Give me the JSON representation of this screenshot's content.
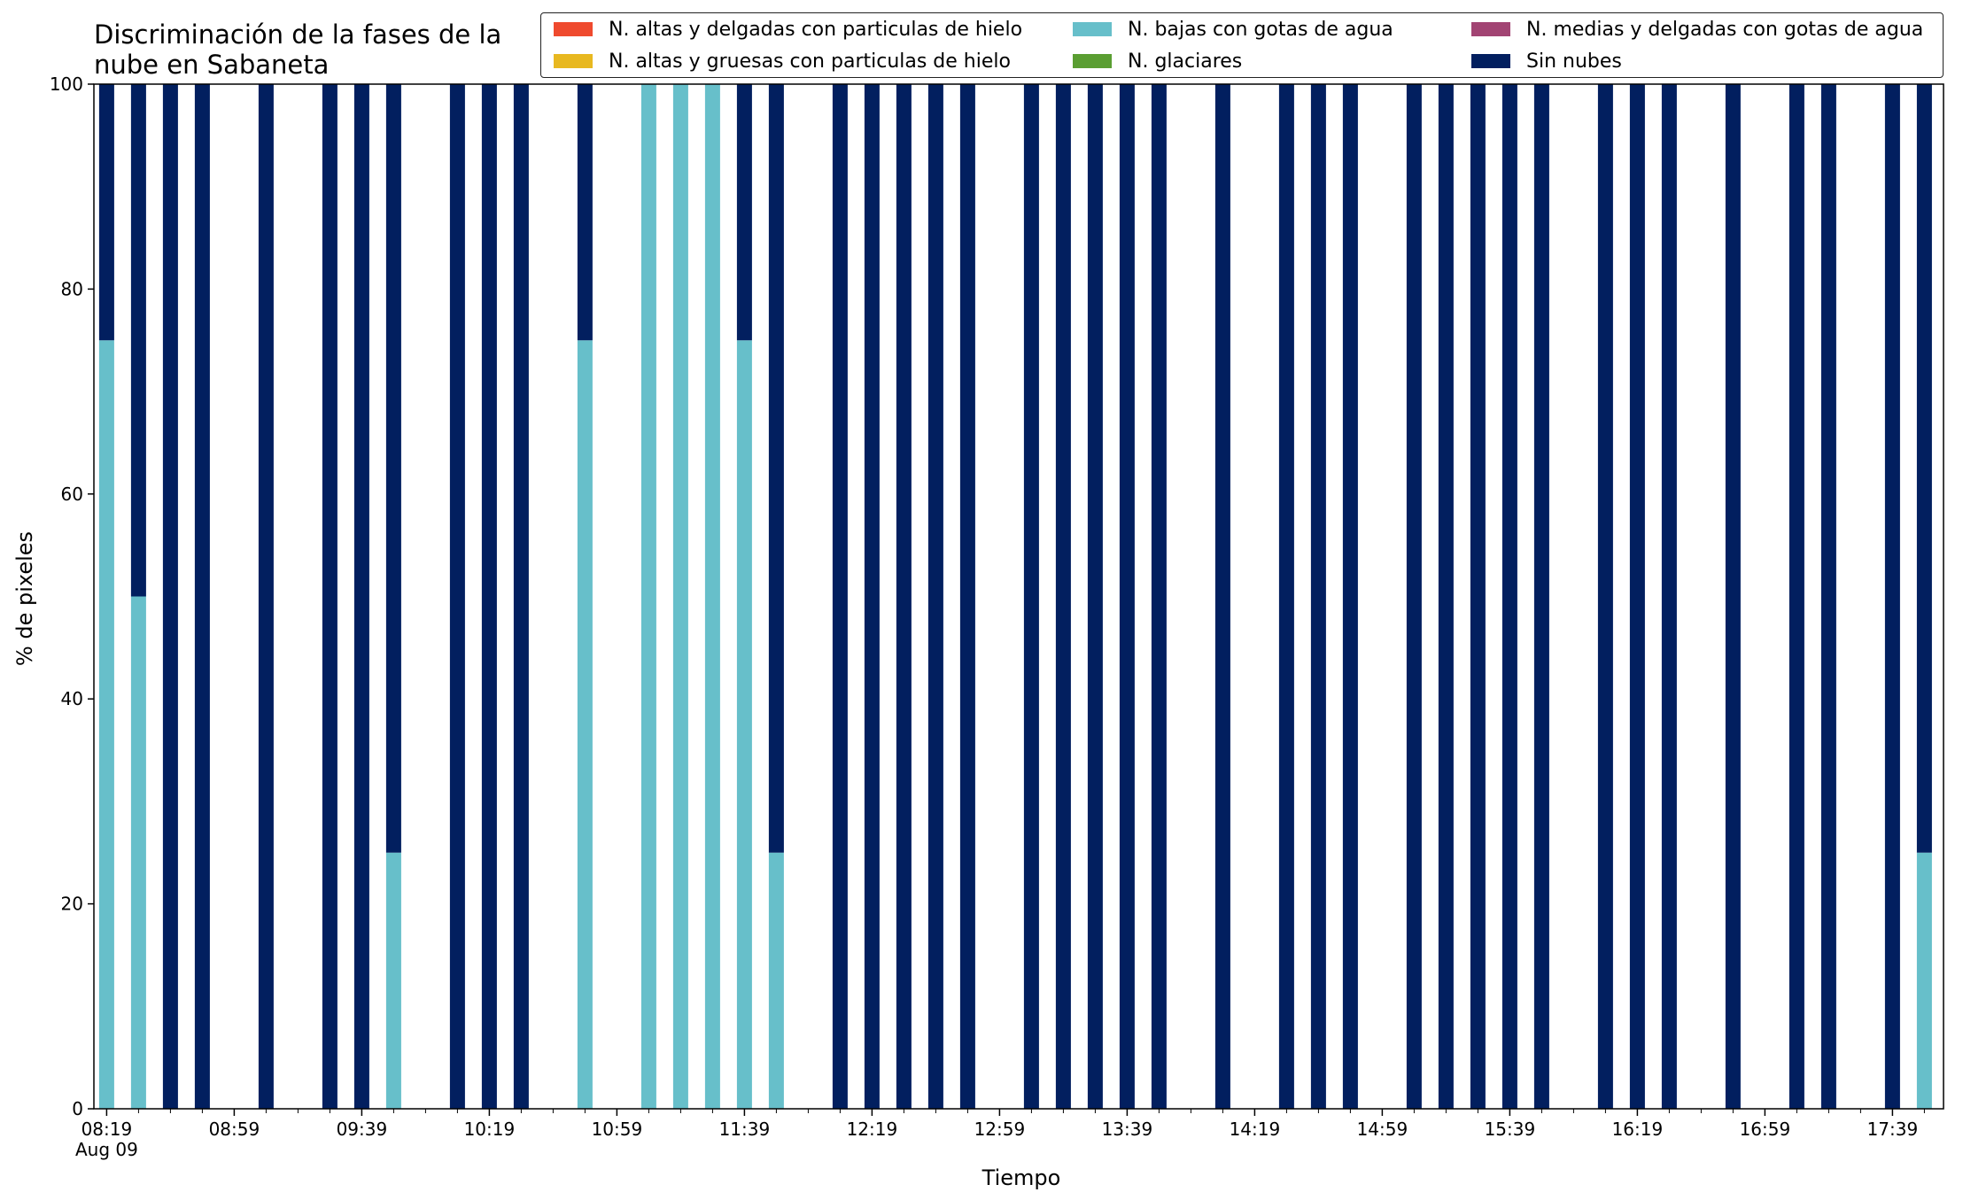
{
  "chart_data": {
    "type": "bar",
    "stacked": true,
    "title_lines": [
      "Discriminación de la fases de la",
      "nube en Sabaneta"
    ],
    "xlabel": "Tiempo",
    "ylabel": "% de pixeles",
    "ylim": [
      0,
      100
    ],
    "yticks": [
      "0",
      "20",
      "40",
      "60",
      "80",
      "100"
    ],
    "xtick_labels": [
      "08:19",
      "08:59",
      "09:39",
      "10:19",
      "10:59",
      "11:39",
      "12:19",
      "12:59",
      "13:39",
      "14:19",
      "14:59",
      "15:39",
      "16:19",
      "16:59",
      "17:39"
    ],
    "xtick_sublabel": "Aug 09",
    "grid": false,
    "legend_position": "top",
    "series": [
      {
        "name": "N. altas y delgadas con particulas de hielo",
        "color": "#ef4a2e"
      },
      {
        "name": "N. altas y gruesas con particulas de hielo",
        "color": "#e8b820"
      },
      {
        "name": "N. bajas con gotas de agua",
        "color": "#67bfca"
      },
      {
        "name": "N. glaciares",
        "color": "#5a9e32"
      },
      {
        "name": "N. medias y delgadas con gotas de agua",
        "color": "#a24473"
      },
      {
        "name": "Sin nubes",
        "color": "#021f5f"
      }
    ],
    "bars": [
      {
        "time": "08:19",
        "N. bajas con gotas de agua": 75,
        "Sin nubes": 25
      },
      {
        "time": "08:29",
        "N. bajas con gotas de agua": 50,
        "Sin nubes": 50
      },
      {
        "time": "08:39",
        "N. bajas con gotas de agua": 0,
        "Sin nubes": 100
      },
      {
        "time": "08:49",
        "N. bajas con gotas de agua": 0,
        "Sin nubes": 100
      },
      {
        "time": "09:09",
        "N. bajas con gotas de agua": 0,
        "Sin nubes": 100
      },
      {
        "time": "09:29",
        "N. bajas con gotas de agua": 0,
        "Sin nubes": 100
      },
      {
        "time": "09:39",
        "N. bajas con gotas de agua": 0,
        "Sin nubes": 100
      },
      {
        "time": "09:49",
        "N. bajas con gotas de agua": 25,
        "Sin nubes": 75
      },
      {
        "time": "10:09",
        "N. bajas con gotas de agua": 0,
        "Sin nubes": 100
      },
      {
        "time": "10:19",
        "N. bajas con gotas de agua": 0,
        "Sin nubes": 100
      },
      {
        "time": "10:29",
        "N. bajas con gotas de agua": 0,
        "Sin nubes": 100
      },
      {
        "time": "10:49",
        "N. bajas con gotas de agua": 75,
        "Sin nubes": 25
      },
      {
        "time": "11:09",
        "N. bajas con gotas de agua": 100,
        "Sin nubes": 0
      },
      {
        "time": "11:19",
        "N. bajas con gotas de agua": 100,
        "Sin nubes": 0
      },
      {
        "time": "11:29",
        "N. bajas con gotas de agua": 100,
        "Sin nubes": 0
      },
      {
        "time": "11:39",
        "N. bajas con gotas de agua": 75,
        "Sin nubes": 25
      },
      {
        "time": "11:49",
        "N. bajas con gotas de agua": 25,
        "Sin nubes": 75
      },
      {
        "time": "12:09",
        "N. bajas con gotas de agua": 0,
        "Sin nubes": 100
      },
      {
        "time": "12:19",
        "N. bajas con gotas de agua": 0,
        "Sin nubes": 100
      },
      {
        "time": "12:29",
        "N. bajas con gotas de agua": 0,
        "Sin nubes": 100
      },
      {
        "time": "12:39",
        "N. bajas con gotas de agua": 0,
        "Sin nubes": 100
      },
      {
        "time": "12:49",
        "N. bajas con gotas de agua": 0,
        "Sin nubes": 100
      },
      {
        "time": "13:09",
        "N. bajas con gotas de agua": 0,
        "Sin nubes": 100
      },
      {
        "time": "13:19",
        "N. bajas con gotas de agua": 0,
        "Sin nubes": 100
      },
      {
        "time": "13:29",
        "N. bajas con gotas de agua": 0,
        "Sin nubes": 100
      },
      {
        "time": "13:39",
        "N. bajas con gotas de agua": 0,
        "Sin nubes": 100
      },
      {
        "time": "13:49",
        "N. bajas con gotas de agua": 0,
        "Sin nubes": 100
      },
      {
        "time": "14:09",
        "N. bajas con gotas de agua": 0,
        "Sin nubes": 100
      },
      {
        "time": "14:29",
        "N. bajas con gotas de agua": 0,
        "Sin nubes": 100
      },
      {
        "time": "14:39",
        "N. bajas con gotas de agua": 0,
        "Sin nubes": 100
      },
      {
        "time": "14:49",
        "N. bajas con gotas de agua": 0,
        "Sin nubes": 100
      },
      {
        "time": "15:09",
        "N. bajas con gotas de agua": 0,
        "Sin nubes": 100
      },
      {
        "time": "15:19",
        "N. bajas con gotas de agua": 0,
        "Sin nubes": 100
      },
      {
        "time": "15:29",
        "N. bajas con gotas de agua": 0,
        "Sin nubes": 100
      },
      {
        "time": "15:39",
        "N. bajas con gotas de agua": 0,
        "Sin nubes": 100
      },
      {
        "time": "15:49",
        "N. bajas con gotas de agua": 0,
        "Sin nubes": 100
      },
      {
        "time": "16:09",
        "N. bajas con gotas de agua": 0,
        "Sin nubes": 100
      },
      {
        "time": "16:19",
        "N. bajas con gotas de agua": 0,
        "Sin nubes": 100
      },
      {
        "time": "16:29",
        "N. bajas con gotas de agua": 0,
        "Sin nubes": 100
      },
      {
        "time": "16:49",
        "N. bajas con gotas de agua": 0,
        "Sin nubes": 100
      },
      {
        "time": "17:09",
        "N. bajas con gotas de agua": 0,
        "Sin nubes": 100
      },
      {
        "time": "17:19",
        "N. bajas con gotas de agua": 0,
        "Sin nubes": 100
      },
      {
        "time": "17:39",
        "N. bajas con gotas de agua": 0,
        "Sin nubes": 100
      },
      {
        "time": "17:49",
        "N. bajas con gotas de agua": 25,
        "Sin nubes": 75
      }
    ]
  }
}
